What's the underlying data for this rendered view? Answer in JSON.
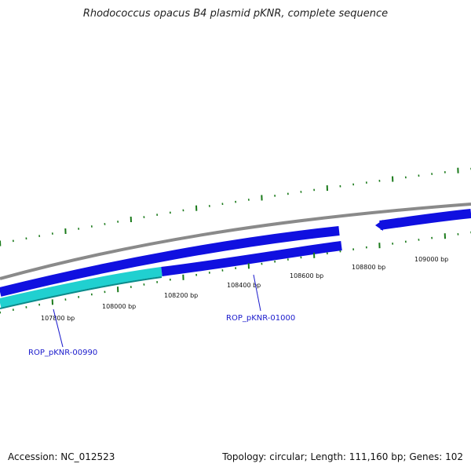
{
  "title": "Rhodococcus opacus B4 plasmid pKNR, complete sequence",
  "footer": {
    "accession": "Accession: NC_012523",
    "summary": "Topology: circular; Length: 111,160 bp; Genes: 102"
  },
  "colors": {
    "backbone": "#8a8a8a",
    "gene_blue": "#1010e0",
    "gene_cyan": "#20d0d0",
    "tick": "#1a7a1a",
    "label_blue": "#1a1acc"
  },
  "ticks": [
    "107800 bp",
    "108000 bp",
    "108200 bp",
    "108400 bp",
    "108600 bp",
    "108800 bp",
    "109000 bp"
  ],
  "gene_labels": [
    "ROP_pKNR-00990",
    "ROP_pKNR-01000"
  ]
}
